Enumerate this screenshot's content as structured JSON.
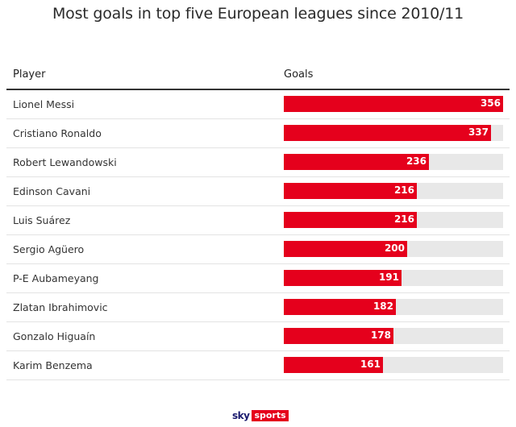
{
  "title": "Most goals in top five European leagues since 2010/11",
  "table": {
    "header_player": "Player",
    "header_goals": "Goals"
  },
  "chart_data": {
    "type": "bar",
    "title": "Most goals in top five European leagues since 2010/11",
    "xlabel": "Goals",
    "ylabel": "Player",
    "categories": [
      "Lionel Messi",
      "Cristiano Ronaldo",
      "Robert Lewandowski",
      "Edinson Cavani",
      "Luis Suárez",
      "Sergio Agüero",
      "P-E Aubameyang",
      "Zlatan Ibrahimovic",
      "Gonzalo Higuaín",
      "Karim Benzema"
    ],
    "values": [
      356,
      337,
      236,
      216,
      216,
      200,
      191,
      182,
      178,
      161
    ],
    "xlim": [
      0,
      356
    ],
    "bar_color": "#e5001c",
    "track_color": "#e8e8e8"
  },
  "logo": {
    "sky": "sky",
    "sports": "sports"
  }
}
